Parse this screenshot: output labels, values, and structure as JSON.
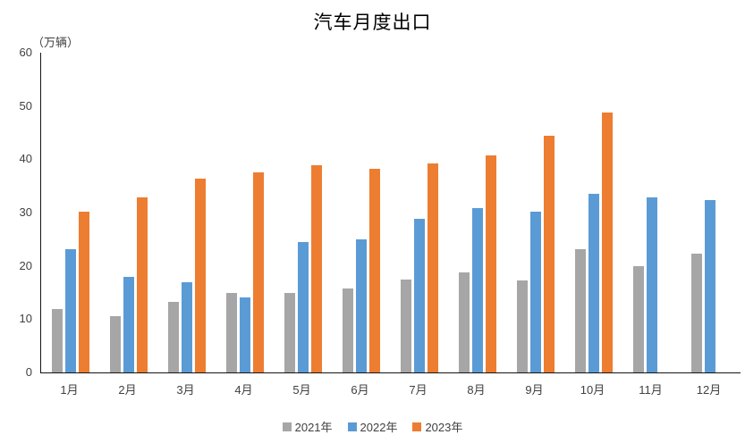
{
  "title": "汽车月度出口",
  "unit_label": "（万辆）",
  "colors": {
    "series_2021": "#A6A6A6",
    "series_2022": "#5B9BD5",
    "series_2023": "#ED7D31",
    "axis": "#141414",
    "label_text": "#404040"
  },
  "legend": [
    {
      "label": "2021年",
      "color": "#A6A6A6"
    },
    {
      "label": "2022年",
      "color": "#5B9BD5"
    },
    {
      "label": "2023年",
      "color": "#ED7D31"
    }
  ],
  "chart_data": {
    "type": "bar",
    "title": "汽车月度出口",
    "ylabel": "（万辆）",
    "xlabel": "",
    "categories": [
      "1月",
      "2月",
      "3月",
      "4月",
      "5月",
      "6月",
      "7月",
      "8月",
      "9月",
      "10月",
      "11月",
      "12月"
    ],
    "series": [
      {
        "name": "2021年",
        "color": "#A6A6A6",
        "values": [
          11.9,
          10.5,
          13.2,
          15.0,
          15.0,
          15.7,
          17.4,
          18.7,
          17.2,
          23.1,
          20.0,
          22.3
        ]
      },
      {
        "name": "2022年",
        "color": "#5B9BD5",
        "values": [
          23.1,
          18.0,
          17.0,
          14.0,
          24.4,
          24.9,
          28.9,
          30.8,
          30.1,
          33.6,
          32.9,
          32.4
        ]
      },
      {
        "name": "2023年",
        "color": "#ED7D31",
        "values": [
          30.1,
          32.9,
          36.4,
          37.6,
          38.9,
          38.2,
          39.2,
          40.8,
          44.4,
          48.8,
          null,
          null
        ]
      }
    ],
    "ylim": [
      0,
      60
    ],
    "yticks": [
      0,
      10,
      20,
      30,
      40,
      50,
      60
    ],
    "grid": false,
    "legend_position": "bottom"
  }
}
